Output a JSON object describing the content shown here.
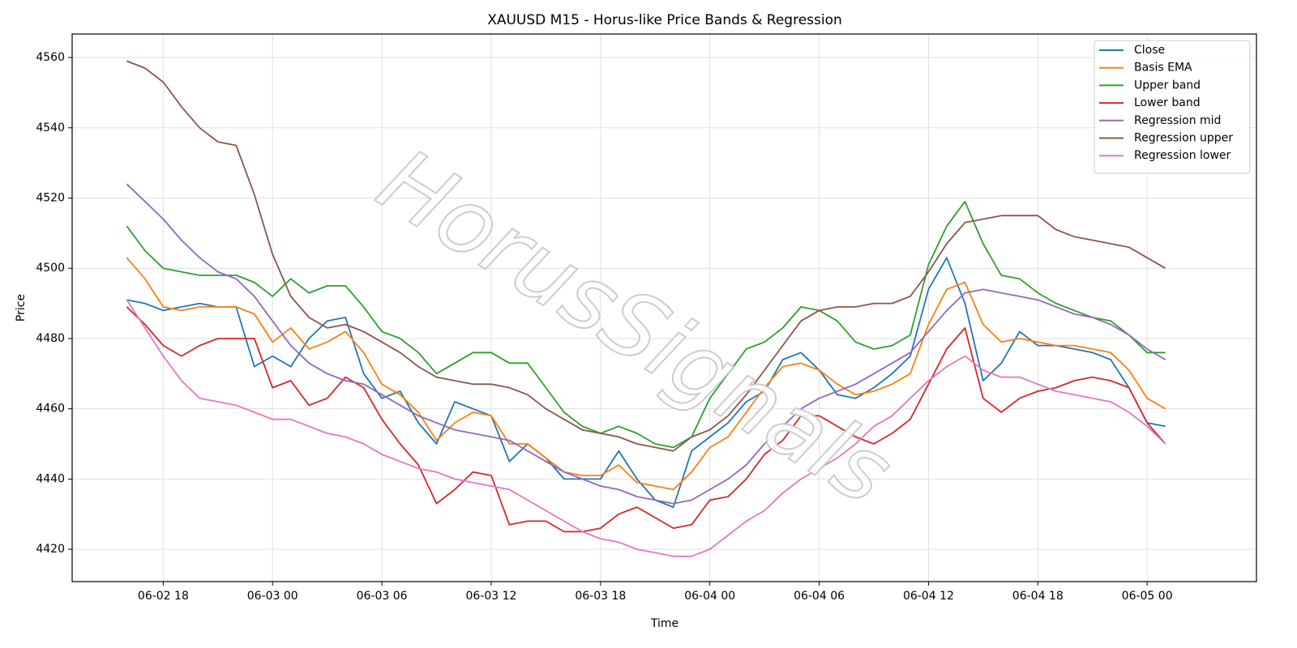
{
  "chart_data": {
    "type": "line",
    "title": "XAUUSD M15 - Horus-like Price Bands & Regression",
    "xlabel": "Time",
    "ylabel": "Price",
    "watermark": "HorusSignals",
    "x": [
      "06-02 16",
      "06-02 17",
      "06-02 18",
      "06-02 19",
      "06-02 20",
      "06-02 21",
      "06-02 22",
      "06-02 23",
      "06-03 00",
      "06-03 01",
      "06-03 02",
      "06-03 03",
      "06-03 04",
      "06-03 05",
      "06-03 06",
      "06-03 07",
      "06-03 08",
      "06-03 09",
      "06-03 10",
      "06-03 11",
      "06-03 12",
      "06-03 13",
      "06-03 14",
      "06-03 15",
      "06-03 16",
      "06-03 17",
      "06-03 18",
      "06-03 19",
      "06-03 20",
      "06-03 21",
      "06-03 22",
      "06-03 23",
      "06-04 00",
      "06-04 01",
      "06-04 02",
      "06-04 03",
      "06-04 04",
      "06-04 05",
      "06-04 06",
      "06-04 07",
      "06-04 08",
      "06-04 09",
      "06-04 10",
      "06-04 11",
      "06-04 12",
      "06-04 13",
      "06-04 14",
      "06-04 15",
      "06-04 16",
      "06-04 17",
      "06-04 18",
      "06-04 19",
      "06-04 20",
      "06-04 21",
      "06-04 22",
      "06-04 23",
      "06-05 00",
      "06-05 01"
    ],
    "xlim": [
      "06-02 13",
      "06-05 06"
    ],
    "xticks": [
      "06-02 18",
      "06-03 00",
      "06-03 06",
      "06-03 12",
      "06-03 18",
      "06-04 00",
      "06-04 06",
      "06-04 12",
      "06-04 18",
      "06-05 00"
    ],
    "ylim": [
      4410.8,
      4566.7
    ],
    "yticks": [
      4420,
      4440,
      4460,
      4480,
      4500,
      4520,
      4540,
      4560
    ],
    "grid": true,
    "legend": "upper right",
    "series": [
      {
        "name": "Close",
        "color": "#1f77b4",
        "values": [
          4491,
          4490,
          4488,
          4489,
          4490,
          4489,
          4489,
          4472,
          4475,
          4472,
          4480,
          4485,
          4486,
          4470,
          4463,
          4465,
          4456,
          4450,
          4462,
          4460,
          4458,
          4445,
          4450,
          4446,
          4440,
          4440,
          4440,
          4448,
          4440,
          4434,
          4432,
          4448,
          4452,
          4456,
          4462,
          4465,
          4474,
          4476,
          4471,
          4464,
          4463,
          4466,
          4470,
          4475,
          4494,
          4503,
          4490,
          4468,
          4473,
          4482,
          4478,
          4478,
          4477,
          4476,
          4474,
          4466,
          4456,
          4455
        ]
      },
      {
        "name": "Basis EMA",
        "color": "#ff7f0e",
        "values": [
          4503,
          4497,
          4489,
          4488,
          4489,
          4489,
          4489,
          4487,
          4479,
          4483,
          4477,
          4479,
          4482,
          4476,
          4467,
          4464,
          4459,
          4451,
          4456,
          4459,
          4458,
          4450,
          4450,
          4446,
          4442,
          4441,
          4441,
          4444,
          4439,
          4438,
          4437,
          4442,
          4449,
          4452,
          4459,
          4466,
          4472,
          4473,
          4471,
          4467,
          4464,
          4465,
          4467,
          4470,
          4484,
          4494,
          4496,
          4484,
          4479,
          4480,
          4479,
          4478,
          4478,
          4477,
          4476,
          4471,
          4463,
          4460
        ]
      },
      {
        "name": "Upper band",
        "color": "#2ca02c",
        "values": [
          4512,
          4505,
          4500,
          4499,
          4498,
          4498,
          4498,
          4496,
          4492,
          4497,
          4493,
          4495,
          4495,
          4489,
          4482,
          4480,
          4476,
          4470,
          4473,
          4476,
          4476,
          4473,
          4473,
          4466,
          4459,
          4455,
          4453,
          4455,
          4453,
          4450,
          4449,
          4452,
          4463,
          4470,
          4477,
          4479,
          4483,
          4489,
          4488,
          4485,
          4479,
          4477,
          4478,
          4481,
          4501,
          4512,
          4519,
          4507,
          4498,
          4497,
          4493,
          4490,
          4488,
          4486,
          4485,
          4481,
          4476,
          4476
        ]
      },
      {
        "name": "Lower band",
        "color": "#d62728",
        "values": [
          4489,
          4484,
          4478,
          4475,
          4478,
          4480,
          4480,
          4480,
          4466,
          4468,
          4461,
          4463,
          4469,
          4466,
          4457,
          4450,
          4444,
          4433,
          4437,
          4442,
          4441,
          4427,
          4428,
          4428,
          4425,
          4425,
          4426,
          4430,
          4432,
          4429,
          4426,
          4427,
          4434,
          4435,
          4440,
          4447,
          4451,
          4458,
          4458,
          4455,
          4452,
          4450,
          4453,
          4457,
          4467,
          4477,
          4483,
          4463,
          4459,
          4463,
          4465,
          4466,
          4468,
          4469,
          4468,
          4466,
          4456,
          4450
        ]
      },
      {
        "name": "Regression mid",
        "color": "#9467bd",
        "values": [
          4524,
          4519,
          4514,
          4508,
          4503,
          4499,
          4497,
          4492,
          4485,
          4478,
          4473,
          4470,
          4468,
          4467,
          4464,
          4461,
          4458,
          4456,
          4454,
          4453,
          4452,
          4451,
          4448,
          4445,
          4442,
          4440,
          4438,
          4437,
          4435,
          4434,
          4433,
          4434,
          4437,
          4440,
          4444,
          4450,
          4455,
          4460,
          4463,
          4465,
          4467,
          4470,
          4473,
          4476,
          4482,
          4488,
          4493,
          4494,
          4493,
          4492,
          4491,
          4489,
          4487,
          4486,
          4484,
          4481,
          4477,
          4474
        ]
      },
      {
        "name": "Regression upper",
        "color": "#8c564b",
        "values": [
          4559,
          4557,
          4553,
          4546,
          4540,
          4536,
          4535,
          4521,
          4504,
          4492,
          4486,
          4483,
          4484,
          4482,
          4479,
          4476,
          4472,
          4469,
          4468,
          4467,
          4467,
          4466,
          4464,
          4460,
          4457,
          4454,
          4453,
          4452,
          4450,
          4449,
          4448,
          4452,
          4454,
          4458,
          4464,
          4471,
          4478,
          4485,
          4488,
          4489,
          4489,
          4490,
          4490,
          4492,
          4499,
          4507,
          4513,
          4514,
          4515,
          4515,
          4515,
          4511,
          4509,
          4508,
          4507,
          4506,
          4503,
          4500
        ]
      },
      {
        "name": "Regression lower",
        "color": "#e377c2",
        "values": [
          4491,
          4483,
          4475,
          4468,
          4463,
          4462,
          4461,
          4459,
          4457,
          4457,
          4455,
          4453,
          4452,
          4450,
          4447,
          4445,
          4443,
          4442,
          4440,
          4439,
          4438,
          4437,
          4434,
          4431,
          4428,
          4425,
          4423,
          4422,
          4420,
          4419,
          4418,
          4418,
          4420,
          4424,
          4428,
          4431,
          4436,
          4440,
          4443,
          4446,
          4450,
          4455,
          4458,
          4463,
          4468,
          4472,
          4475,
          4471,
          4469,
          4469,
          4467,
          4465,
          4464,
          4463,
          4462,
          4459,
          4455,
          4450
        ]
      }
    ]
  }
}
